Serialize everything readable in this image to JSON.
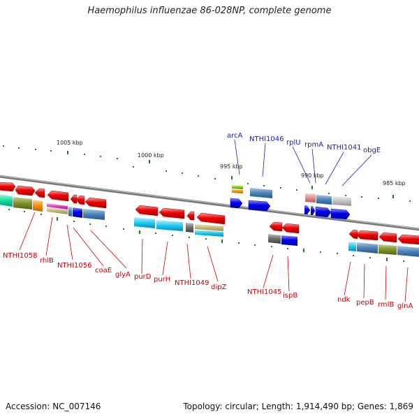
{
  "title": "Haemophilus influenzae 86-028NP, complete genome",
  "footer": {
    "accession": "Accession: NC_007146",
    "summary": "Topology: circular; Length: 1,914,490 bp; Genes: 1,869"
  },
  "scale": [
    "1005 kbp",
    "1000 kbp",
    "995 kbp",
    "990 kbp",
    "985 kbp"
  ],
  "top_labels": [
    "arcA",
    "NTHI1046",
    "rplU",
    "rpmA",
    "NTHI1041",
    "obgE"
  ],
  "bottom_labels": [
    "NTHI1058",
    "rhlB",
    "NTHI1056",
    "coaE",
    "glyA",
    "purD",
    "purH",
    "NTHI1049",
    "dipZ",
    "NTHI1045",
    "ispB",
    "ndk",
    "pepB",
    "rmlB",
    "glnA"
  ],
  "colors": {
    "backbone": "#8c8c8c",
    "top_label": "#1a1ab4",
    "bottom_label": "#c80000",
    "tick": "#1e7a1e",
    "forward_gene": "#0000ee",
    "reverse_gene": "#ee0000"
  }
}
